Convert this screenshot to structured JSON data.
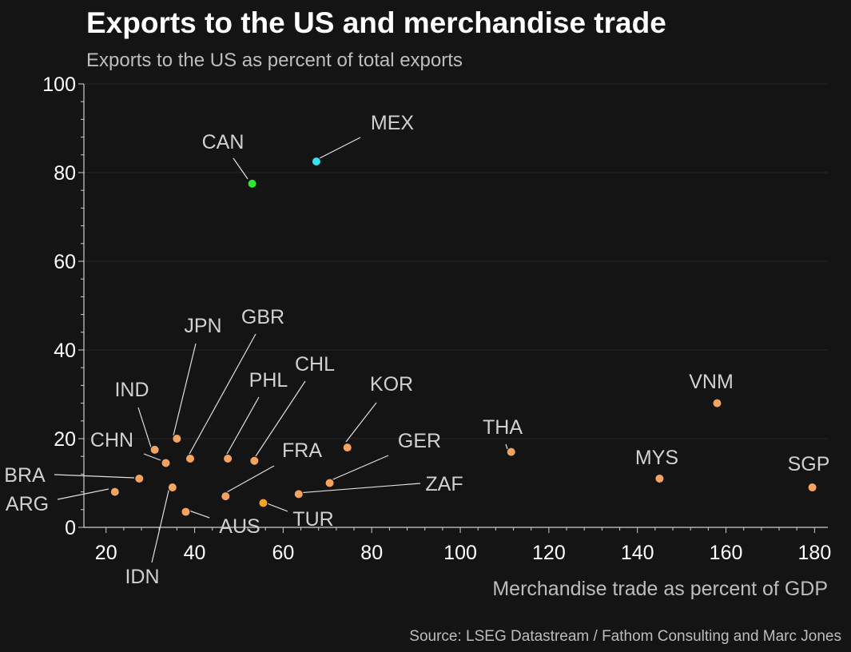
{
  "header": {
    "title": "Exports to the US and merchandise trade",
    "subtitle": "Exports to the US as percent of total exports"
  },
  "footer": {
    "source": "Source: LSEG Datastream / Fathom Consulting and Marc Jones"
  },
  "colors": {
    "background": "#141414",
    "default_point": "#f4a460",
    "can": "#2ee82e",
    "mex": "#35e3f0",
    "tur": "#f5a31a",
    "axis": "#cfcfcf",
    "grid": "#262626"
  },
  "chart_data": {
    "type": "scatter",
    "title": "Exports to the US and merchandise trade",
    "ylabel": "Exports to the US as percent of total exports",
    "xlabel": "Merchandise trade as percent of GDP",
    "xlim": [
      15,
      183
    ],
    "ylim": [
      0,
      100
    ],
    "xticks": [
      20,
      40,
      60,
      80,
      100,
      120,
      140,
      160,
      180
    ],
    "yticks": [
      0,
      20,
      40,
      60,
      80,
      100
    ],
    "grid": true,
    "points": [
      {
        "label": "CAN",
        "x": 53,
        "y": 77.5,
        "color": "#2ee82e"
      },
      {
        "label": "MEX",
        "x": 67.5,
        "y": 82.5,
        "color": "#35e3f0"
      },
      {
        "label": "VNM",
        "x": 158,
        "y": 28,
        "color": "#f4a460"
      },
      {
        "label": "THA",
        "x": 111.5,
        "y": 17,
        "color": "#f4a460"
      },
      {
        "label": "MYS",
        "x": 145,
        "y": 11,
        "color": "#f4a460"
      },
      {
        "label": "SGP",
        "x": 179.5,
        "y": 9,
        "color": "#f4a460"
      },
      {
        "label": "KOR",
        "x": 74.5,
        "y": 18,
        "color": "#f4a460"
      },
      {
        "label": "GER",
        "x": 70.5,
        "y": 10,
        "color": "#f4a460"
      },
      {
        "label": "ZAF",
        "x": 63.5,
        "y": 7.5,
        "color": "#f4a460"
      },
      {
        "label": "TUR",
        "x": 55.5,
        "y": 5.5,
        "color": "#f5a31a"
      },
      {
        "label": "FRA",
        "x": 47,
        "y": 7,
        "color": "#f4a460"
      },
      {
        "label": "AUS",
        "x": 38,
        "y": 3.5,
        "color": "#f4a460"
      },
      {
        "label": "CHL",
        "x": 53.5,
        "y": 15,
        "color": "#f4a460"
      },
      {
        "label": "PHL",
        "x": 47.5,
        "y": 15.5,
        "color": "#f4a460"
      },
      {
        "label": "GBR",
        "x": 39,
        "y": 15.5,
        "color": "#f4a460"
      },
      {
        "label": "JPN",
        "x": 36,
        "y": 20,
        "color": "#f4a460"
      },
      {
        "label": "IND",
        "x": 31,
        "y": 17.5,
        "color": "#f4a460"
      },
      {
        "label": "CHN",
        "x": 33.5,
        "y": 14.5,
        "color": "#f4a460"
      },
      {
        "label": "BRA",
        "x": 27.5,
        "y": 11,
        "color": "#f4a460"
      },
      {
        "label": "ARG",
        "x": 22,
        "y": 8,
        "color": "#f4a460"
      },
      {
        "label": "IDN",
        "x": 35,
        "y": 9,
        "color": "#f4a460"
      }
    ]
  }
}
